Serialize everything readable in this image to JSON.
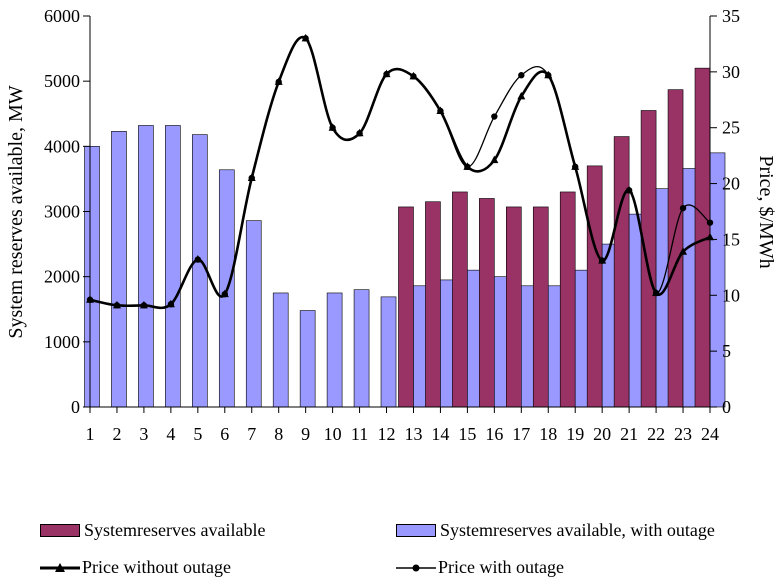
{
  "chart_data": {
    "type": "bar",
    "categories": [
      "1",
      "2",
      "3",
      "4",
      "5",
      "6",
      "7",
      "8",
      "9",
      "10",
      "11",
      "12",
      "13",
      "14",
      "15",
      "16",
      "17",
      "18",
      "19",
      "20",
      "21",
      "22",
      "23",
      "24"
    ],
    "ylabel": "System reserves available, MW",
    "y2label": "Price, $/MWh",
    "ylim": [
      0,
      6000
    ],
    "y2lim": [
      0,
      35
    ],
    "yticks": [
      "0",
      "1000",
      "2000",
      "3000",
      "4000",
      "5000",
      "6000"
    ],
    "y2ticks": [
      "0",
      "5",
      "10",
      "15",
      "20",
      "25",
      "30",
      "35"
    ],
    "grid": false,
    "legend_position": "bottom",
    "series": [
      {
        "name": "Systemreserves available",
        "type": "bar",
        "color": "#993366",
        "axis": "left",
        "values": [
          4000,
          4230,
          4320,
          4320,
          4180,
          3640,
          2860,
          1750,
          1480,
          1750,
          1800,
          1690,
          3070,
          3150,
          3300,
          3200,
          3070,
          3070,
          3300,
          3700,
          4150,
          4550,
          4870,
          5200
        ]
      },
      {
        "name": "Systemreserves available, with outage",
        "type": "bar",
        "color": "#9999ff",
        "axis": "left",
        "values": [
          4000,
          4230,
          4320,
          4320,
          4180,
          3640,
          2860,
          1750,
          1480,
          1750,
          1800,
          1690,
          1860,
          1950,
          2100,
          2000,
          1860,
          1860,
          2100,
          2500,
          2960,
          3350,
          3660,
          3900
        ]
      },
      {
        "name": "Price without outage",
        "type": "line",
        "marker": "triangle",
        "color": "#000000",
        "axis": "right",
        "values": [
          9.6,
          9.1,
          9.1,
          9.2,
          13.2,
          10.1,
          20.5,
          29.1,
          33.0,
          25.0,
          24.5,
          29.8,
          29.6,
          26.5,
          21.5,
          22.1,
          27.8,
          29.7,
          21.5,
          13.1,
          19.4,
          10.2,
          13.9,
          15.2
        ]
      },
      {
        "name": "Price with outage",
        "type": "line",
        "marker": "circle",
        "color": "#000000",
        "axis": "right",
        "values": [
          9.6,
          9.1,
          9.1,
          9.2,
          13.2,
          10.1,
          20.5,
          29.1,
          33.0,
          25.0,
          24.5,
          29.8,
          29.6,
          26.5,
          21.5,
          26.0,
          29.7,
          29.7,
          21.5,
          13.1,
          19.4,
          10.2,
          17.8,
          16.5
        ]
      }
    ]
  },
  "legend": {
    "items": [
      {
        "label": "Systemreserves available"
      },
      {
        "label": "Systemreserves available, with outage"
      },
      {
        "label": "Price without outage"
      },
      {
        "label": "Price with outage"
      }
    ]
  }
}
